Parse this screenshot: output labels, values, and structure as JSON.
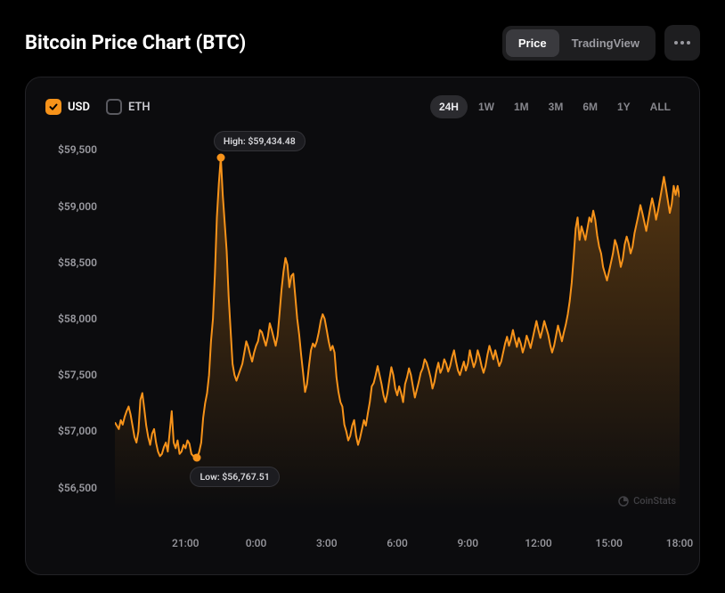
{
  "title": "Bitcoin Price Chart (BTC)",
  "view_toggle": {
    "price": "Price",
    "tradingview": "TradingView",
    "active": "price"
  },
  "currencies": [
    {
      "label": "USD",
      "checked": true
    },
    {
      "label": "ETH",
      "checked": false
    }
  ],
  "ranges": [
    "24H",
    "1W",
    "1M",
    "3M",
    "6M",
    "1Y",
    "ALL"
  ],
  "active_range": "24H",
  "chart": {
    "type": "area",
    "line_color": "#f7931a",
    "line_width": 2,
    "fill_top": "rgba(247,147,26,0.32)",
    "fill_bottom": "rgba(247,147,26,0.0)",
    "background": "#0c0c0e",
    "grid_color": "transparent",
    "font_color": "#9a9aa0",
    "ylim": [
      56300,
      59700
    ],
    "yticks": [
      56500,
      57000,
      57500,
      58000,
      58500,
      59000,
      59500
    ],
    "ytick_labels": [
      "$56,500",
      "$57,000",
      "$57,500",
      "$58,000",
      "$58,500",
      "$59,000",
      "$59,500"
    ],
    "xlim": [
      0,
      288
    ],
    "xticks": [
      36,
      72,
      108,
      144,
      180,
      216,
      252,
      288
    ],
    "xtick_labels": [
      "21:00",
      "0:00",
      "3:00",
      "6:00",
      "9:00",
      "12:00",
      "15:00",
      "18:00"
    ],
    "high": {
      "label": "High: $59,434.48",
      "value": 59434.48,
      "x": 54
    },
    "low": {
      "label": "Low: $56,767.51",
      "value": 56767.51,
      "x": 42
    },
    "series": [
      57080,
      57050,
      57020,
      57100,
      57060,
      57130,
      57180,
      57220,
      57150,
      57050,
      56950,
      56900,
      57000,
      57280,
      57340,
      57200,
      57050,
      56950,
      56880,
      56980,
      57020,
      56900,
      56820,
      56780,
      56800,
      56860,
      56900,
      56820,
      57000,
      57180,
      56900,
      56850,
      56920,
      56800,
      56820,
      56880,
      56850,
      56920,
      56890,
      56800,
      56780,
      56790,
      56767,
      56820,
      56900,
      57120,
      57250,
      57340,
      57500,
      57800,
      58000,
      58400,
      58900,
      59200,
      59434,
      59100,
      58850,
      58600,
      58200,
      57900,
      57600,
      57500,
      57450,
      57500,
      57550,
      57600,
      57700,
      57800,
      57750,
      57680,
      57620,
      57700,
      57760,
      57800,
      57900,
      57880,
      57820,
      57760,
      57840,
      57960,
      57900,
      57830,
      57760,
      57850,
      58050,
      58260,
      58420,
      58540,
      58480,
      58280,
      58380,
      58400,
      58200,
      58000,
      57860,
      57680,
      57520,
      57350,
      57420,
      57580,
      57720,
      57780,
      57750,
      57800,
      57880,
      57980,
      58040,
      58000,
      57900,
      57800,
      57720,
      57760,
      57700,
      57480,
      57350,
      57260,
      57220,
      57060,
      57000,
      56920,
      56960,
      57050,
      57100,
      56960,
      56880,
      56940,
      57020,
      57100,
      57050,
      57160,
      57260,
      57400,
      57430,
      57500,
      57580,
      57500,
      57420,
      57320,
      57260,
      57340,
      57460,
      57570,
      57500,
      57380,
      57320,
      57400,
      57340,
      57260,
      57420,
      57480,
      57560,
      57500,
      57400,
      57300,
      57370,
      57440,
      57520,
      57560,
      57640,
      57610,
      57550,
      57480,
      57380,
      57440,
      57540,
      57610,
      57520,
      57560,
      57640,
      57600,
      57530,
      57580,
      57660,
      57720,
      57620,
      57540,
      57500,
      57560,
      57620,
      57540,
      57600,
      57720,
      57640,
      57570,
      57620,
      57720,
      57660,
      57580,
      57520,
      57580,
      57680,
      57760,
      57700,
      57640,
      57720,
      57650,
      57580,
      57620,
      57700,
      57780,
      57840,
      57760,
      57820,
      57900,
      57820,
      57750,
      57830,
      57780,
      57700,
      57760,
      57850,
      57800,
      57740,
      57820,
      57900,
      57980,
      57900,
      57830,
      57900,
      57980,
      57920,
      57860,
      57770,
      57700,
      57760,
      57850,
      57940,
      57870,
      57800,
      57880,
      57950,
      58040,
      58160,
      58320,
      58550,
      58800,
      58900,
      58700,
      58820,
      58760,
      58700,
      58800,
      58900,
      58860,
      58960,
      58880,
      58740,
      58640,
      58580,
      58460,
      58400,
      58340,
      58420,
      58500,
      58580,
      58700,
      58650,
      58560,
      58460,
      58530,
      58660,
      58730,
      58670,
      58580,
      58640,
      58760,
      58840,
      58920,
      59010,
      58940,
      58860,
      58780,
      58880,
      58980,
      59070,
      58990,
      58880,
      58960,
      59060,
      59160,
      59260,
      59160,
      59050,
      58940,
      59020,
      59180,
      59100,
      59180,
      59080
    ]
  },
  "watermark": "CoinStats"
}
